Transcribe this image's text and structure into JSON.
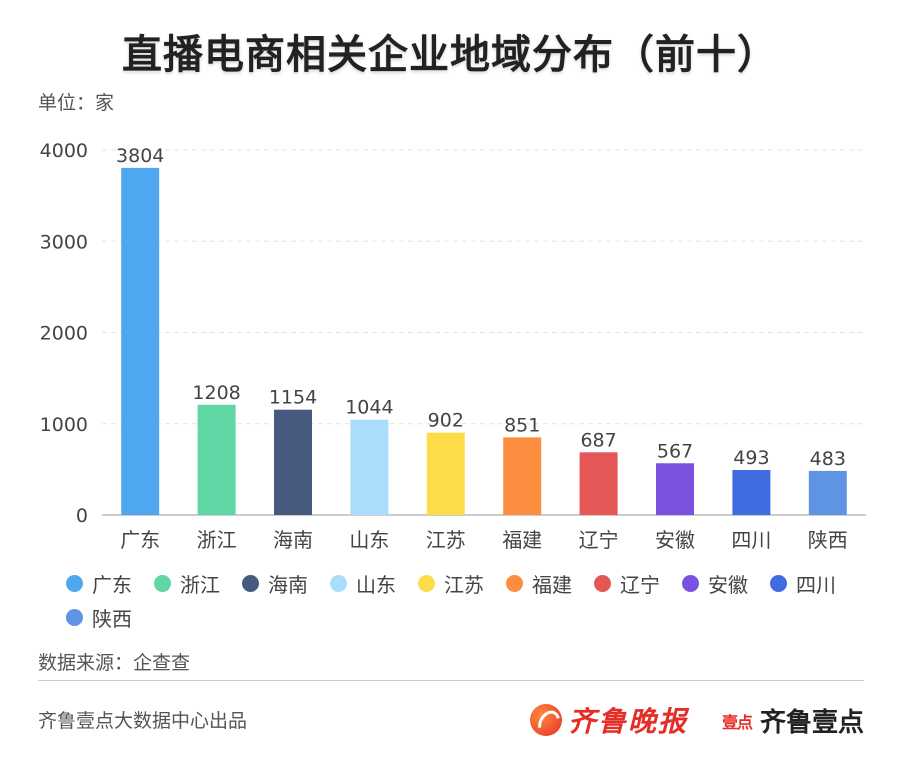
{
  "title": "直播电商相关企业地域分布（前十）",
  "unit": "单位：家",
  "source": "数据来源：企查查",
  "producer": "齐鲁壹点大数据中心出品",
  "brand": {
    "name": "齐鲁晚报",
    "sub_mark": "壹点",
    "sub_name": "齐鲁壹点"
  },
  "chart_data": {
    "type": "bar",
    "categories": [
      "广东",
      "浙江",
      "海南",
      "山东",
      "江苏",
      "福建",
      "辽宁",
      "安徽",
      "四川",
      "陕西"
    ],
    "values": [
      3804,
      1208,
      1154,
      1044,
      902,
      851,
      687,
      567,
      493,
      483
    ],
    "colors": [
      "#4fa8ef",
      "#5fd6a3",
      "#455a7e",
      "#a9ddfb",
      "#fddc4a",
      "#fb8f3f",
      "#e55656",
      "#7a52df",
      "#3f6ce0",
      "#5f94e4"
    ],
    "ylim": [
      0,
      4000
    ],
    "yticks": [
      0,
      1000,
      2000,
      3000,
      4000
    ],
    "grid": true,
    "legend_position": "bottom",
    "data_labels": true
  }
}
